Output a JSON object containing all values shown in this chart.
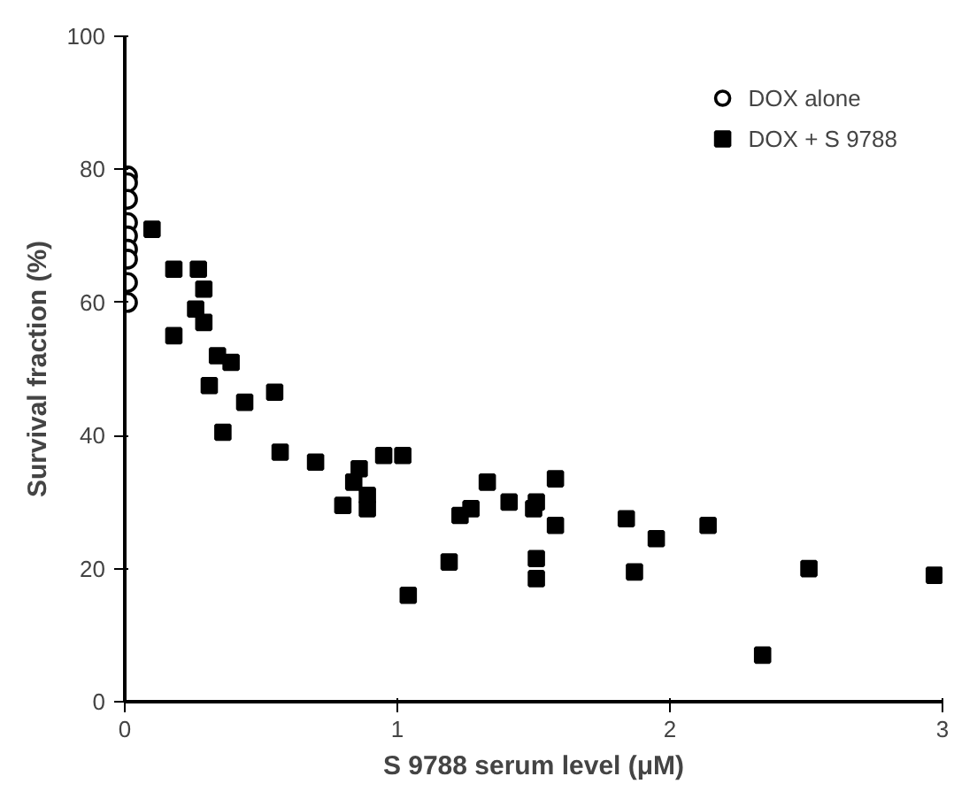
{
  "chart_data": {
    "type": "scatter",
    "xlabel": "S 9788 serum level (μM)",
    "ylabel": "Survival fraction (%)",
    "xlim": [
      0,
      3
    ],
    "ylim": [
      0,
      100
    ],
    "xticks": [
      0,
      1,
      2,
      3
    ],
    "yticks": [
      0,
      20,
      40,
      60,
      80,
      100
    ],
    "grid": false,
    "legend": "top right",
    "series": [
      {
        "name": "DOX alone",
        "color": "#000000",
        "marker": "circle",
        "x": [
          0.01,
          0.01,
          0.01,
          0.01,
          0.01,
          0.01,
          0.01,
          0.01,
          0.01
        ],
        "values": [
          79,
          78,
          75.5,
          72,
          70,
          68,
          66.5,
          63,
          60
        ]
      },
      {
        "name": "DOX + S 9788",
        "color": "#000000",
        "marker": "square",
        "x": [
          0.1,
          0.18,
          0.27,
          0.29,
          0.26,
          0.29,
          0.18,
          0.34,
          0.39,
          0.31,
          0.55,
          0.44,
          0.36,
          0.57,
          0.7,
          0.8,
          0.84,
          0.86,
          0.89,
          0.89,
          0.95,
          1.02,
          1.04,
          1.19,
          1.23,
          1.27,
          1.33,
          1.41,
          1.5,
          1.51,
          1.58,
          1.58,
          1.51,
          1.51,
          1.84,
          1.87,
          1.95,
          2.14,
          2.34,
          2.51,
          2.97
        ],
        "values": [
          71,
          65,
          65,
          62,
          59,
          57,
          55,
          52,
          51,
          47.5,
          46.5,
          45,
          40.5,
          37.5,
          36,
          29.5,
          33,
          35,
          31,
          29,
          37,
          37,
          16,
          21,
          28,
          29,
          33,
          30,
          29,
          30,
          33.5,
          26.5,
          21.5,
          18.5,
          27.5,
          19.5,
          24.5,
          26.5,
          7,
          20,
          19
        ]
      }
    ]
  }
}
